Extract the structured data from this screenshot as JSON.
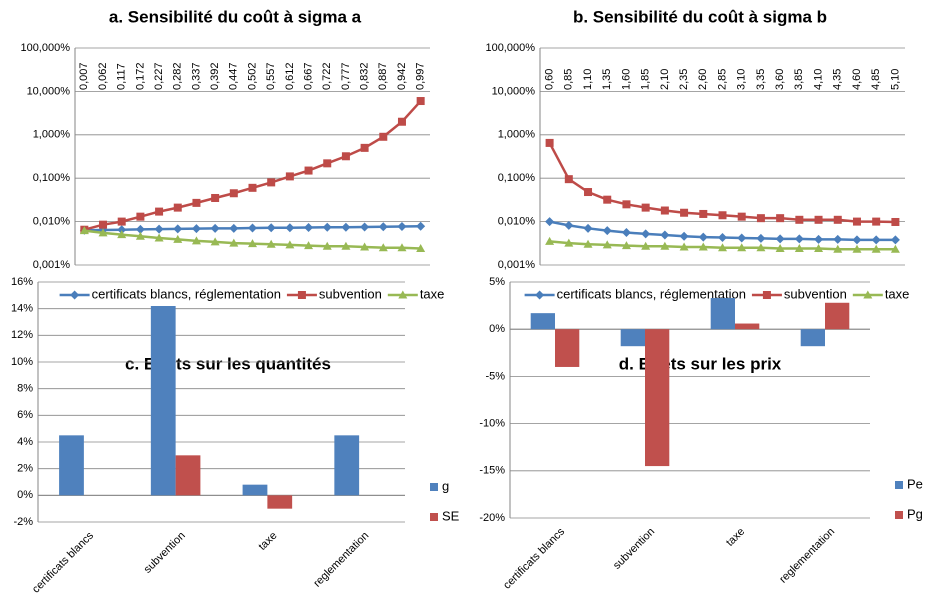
{
  "chart_data": [
    {
      "type": "line",
      "title": "a. Sensibilité du coût à sigma a",
      "log_scale": true,
      "grid": true,
      "legend": "bottom",
      "categories": [
        "0,007",
        "0,062",
        "0,117",
        "0,172",
        "0,227",
        "0,282",
        "0,337",
        "0,392",
        "0,447",
        "0,502",
        "0,557",
        "0,612",
        "0,667",
        "0,722",
        "0,777",
        "0,832",
        "0,887",
        "0,942",
        "0,997"
      ],
      "ylim": [
        0.001,
        100
      ],
      "yticks": [
        {
          "value": 0.001,
          "label": "0,001%"
        },
        {
          "value": 0.01,
          "label": "0,010%"
        },
        {
          "value": 0.1,
          "label": "0,100%"
        },
        {
          "value": 1,
          "label": "1,000%"
        },
        {
          "value": 10,
          "label": "10,000%"
        },
        {
          "value": 100,
          "label": "100,000%"
        }
      ],
      "series": [
        {
          "name": "certificats blancs, réglementation",
          "color": "#4a7ebb",
          "marker": "diamond",
          "values": [
            0.0063,
            0.0064,
            0.0065,
            0.0066,
            0.0067,
            0.0068,
            0.0069,
            0.007,
            0.007,
            0.0071,
            0.0072,
            0.0072,
            0.0073,
            0.0074,
            0.0074,
            0.0075,
            0.0076,
            0.0077,
            0.0078
          ]
        },
        {
          "name": "subvention",
          "color": "#be4b48",
          "marker": "square",
          "values": [
            0.0065,
            0.0085,
            0.01,
            0.013,
            0.017,
            0.021,
            0.027,
            0.035,
            0.045,
            0.06,
            0.08,
            0.11,
            0.15,
            0.22,
            0.32,
            0.5,
            0.9,
            2.0,
            6.0
          ]
        },
        {
          "name": "taxe",
          "color": "#98b954",
          "marker": "triangle",
          "values": [
            0.0062,
            0.0055,
            0.005,
            0.0046,
            0.0042,
            0.0039,
            0.0036,
            0.0034,
            0.0032,
            0.0031,
            0.003,
            0.0029,
            0.0028,
            0.0027,
            0.0027,
            0.0026,
            0.0025,
            0.0025,
            0.0024
          ]
        }
      ]
    },
    {
      "type": "line",
      "title": "b. Sensibilité du coût à sigma b",
      "log_scale": true,
      "grid": true,
      "legend": "bottom",
      "categories": [
        "0,60",
        "0,85",
        "1,10",
        "1,35",
        "1,60",
        "1,85",
        "2,10",
        "2,35",
        "2,60",
        "2,85",
        "3,10",
        "3,35",
        "3,60",
        "3,85",
        "4,10",
        "4,35",
        "4,60",
        "4,85",
        "5,10"
      ],
      "ylim": [
        0.001,
        100
      ],
      "yticks": [
        {
          "value": 0.001,
          "label": "0,001%"
        },
        {
          "value": 0.01,
          "label": "0,010%"
        },
        {
          "value": 0.1,
          "label": "0,100%"
        },
        {
          "value": 1,
          "label": "1,000%"
        },
        {
          "value": 10,
          "label": "10,000%"
        },
        {
          "value": 100,
          "label": "100,000%"
        }
      ],
      "series": [
        {
          "name": "certificats blancs, réglementation",
          "color": "#4a7ebb",
          "marker": "diamond",
          "values": [
            0.01,
            0.0082,
            0.007,
            0.0062,
            0.0056,
            0.0052,
            0.0049,
            0.0046,
            0.0044,
            0.0043,
            0.0042,
            0.0041,
            0.004,
            0.004,
            0.0039,
            0.0039,
            0.0038,
            0.0038,
            0.0038
          ]
        },
        {
          "name": "subvention",
          "color": "#be4b48",
          "marker": "square",
          "values": [
            0.65,
            0.095,
            0.048,
            0.032,
            0.025,
            0.021,
            0.018,
            0.016,
            0.015,
            0.014,
            0.013,
            0.012,
            0.012,
            0.011,
            0.011,
            0.011,
            0.01,
            0.01,
            0.0098
          ]
        },
        {
          "name": "taxe",
          "color": "#98b954",
          "marker": "triangle",
          "values": [
            0.0035,
            0.0032,
            0.003,
            0.0029,
            0.0028,
            0.0027,
            0.0027,
            0.0026,
            0.0026,
            0.0025,
            0.0025,
            0.0025,
            0.0024,
            0.0024,
            0.0024,
            0.0023,
            0.0023,
            0.0023,
            0.0023
          ]
        }
      ]
    },
    {
      "type": "bar",
      "title": "c. Effets sur les quantités",
      "grid": true,
      "legend": "right",
      "categories": [
        "certificats blancs",
        "subvention",
        "taxe",
        "reglementation"
      ],
      "ylim": [
        -2,
        16
      ],
      "yticks": [
        {
          "value": -2,
          "label": "-2%"
        },
        {
          "value": 0,
          "label": "0%"
        },
        {
          "value": 2,
          "label": "2%"
        },
        {
          "value": 4,
          "label": "4%"
        },
        {
          "value": 6,
          "label": "6%"
        },
        {
          "value": 8,
          "label": "8%"
        },
        {
          "value": 10,
          "label": "10%"
        },
        {
          "value": 12,
          "label": "12%"
        },
        {
          "value": 14,
          "label": "14%"
        },
        {
          "value": 16,
          "label": "16%"
        }
      ],
      "series": [
        {
          "name": "g",
          "color": "#4f81bd",
          "values": [
            4.5,
            14.2,
            0.8,
            4.5
          ]
        },
        {
          "name": "SE",
          "color": "#c0504d",
          "values": [
            0,
            3.0,
            -1.0,
            0
          ]
        }
      ]
    },
    {
      "type": "bar",
      "title": "d. Effets sur les prix",
      "grid": true,
      "legend": "right",
      "categories": [
        "certificats blancs",
        "subvention",
        "taxe",
        "reglementation"
      ],
      "ylim": [
        -20,
        5
      ],
      "yticks": [
        {
          "value": -20,
          "label": "-20%"
        },
        {
          "value": -15,
          "label": "-15%"
        },
        {
          "value": -10,
          "label": "-10%"
        },
        {
          "value": -5,
          "label": "-5%"
        },
        {
          "value": 0,
          "label": "0%"
        },
        {
          "value": 5,
          "label": "5%"
        }
      ],
      "series": [
        {
          "name": "Pe",
          "color": "#4f81bd",
          "values": [
            1.7,
            -1.8,
            3.3,
            -1.8
          ]
        },
        {
          "name": "Pg",
          "color": "#c0504d",
          "values": [
            -4.0,
            -14.5,
            0.6,
            2.8
          ]
        }
      ]
    }
  ]
}
